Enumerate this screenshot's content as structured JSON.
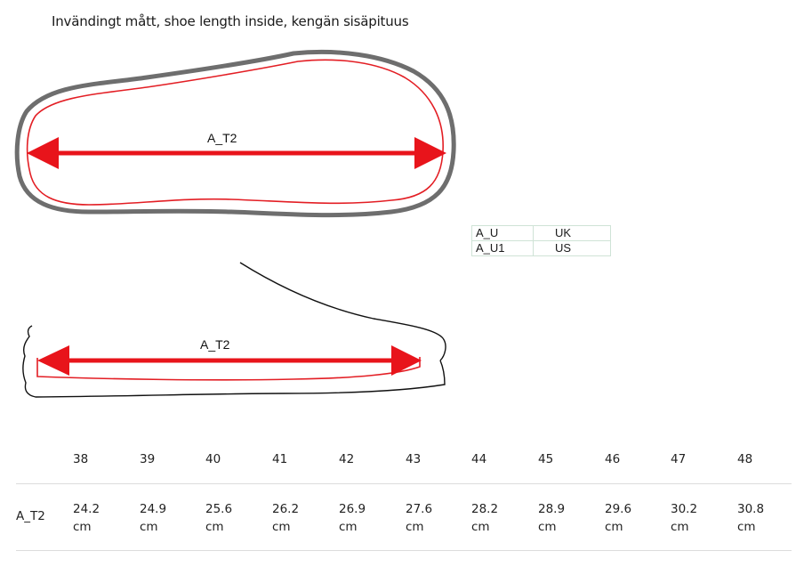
{
  "title": "Invändingt mått, shoe length inside, kengän sisäpituus",
  "diagram": {
    "top_label": "A_T2",
    "side_label": "A_T2",
    "outline_color": "#6e6e6e",
    "inner_color": "#e31e24",
    "arrow_color": "#e8141b"
  },
  "legend": [
    {
      "key": "A_U",
      "value": "UK"
    },
    {
      "key": "A_U1",
      "value": "US"
    }
  ],
  "size_table": {
    "row_label": "A_T2",
    "sizes": [
      "38",
      "39",
      "40",
      "41",
      "42",
      "43",
      "44",
      "45",
      "46",
      "47",
      "48"
    ],
    "lengths": [
      "24.2",
      "24.9",
      "25.6",
      "26.2",
      "26.9",
      "27.6",
      "28.2",
      "28.9",
      "29.6",
      "30.2",
      "30.8"
    ],
    "unit": "cm"
  }
}
